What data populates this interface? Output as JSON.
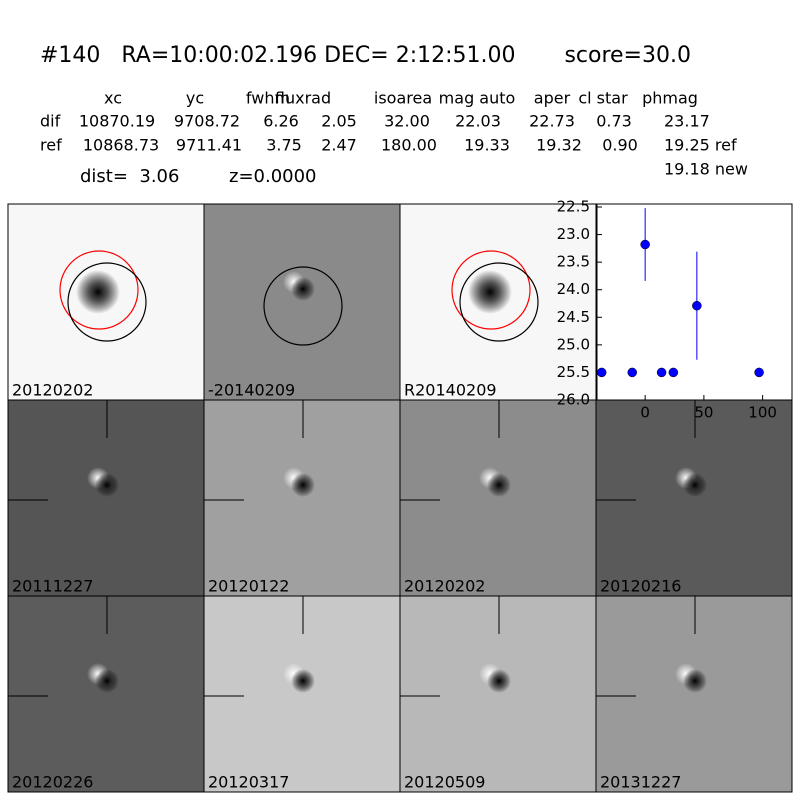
{
  "header": {
    "title": "#140   RA=10:00:02.196 DEC= 2:12:51.00       score=30.0"
  },
  "table": {
    "columns": [
      "xc",
      "yc",
      "fwhm",
      "fluxrad",
      "isoarea",
      "mag auto",
      "aper",
      "cl star",
      "phmag"
    ],
    "rows": [
      [
        "dif",
        "10870.19",
        "9708.72",
        "6.26",
        "2.05",
        "32.00",
        "22.03",
        "22.73",
        "0.73",
        "23.17"
      ],
      [
        "ref",
        "10868.73",
        "9711.41",
        "3.75",
        "2.47",
        "180.00",
        "19.33",
        "19.32",
        "0.90",
        "19.25 ref"
      ]
    ]
  },
  "dist": "dist=  3.06",
  "z": "z=0.0000",
  "new_mag": "19.18 new",
  "stamps": [
    {
      "label": "20120202",
      "color": "#000000"
    },
    {
      "label": "-20140209",
      "color": "#000000"
    },
    {
      "label": "R20140209",
      "color": "#000000"
    },
    {
      "label": "20111227",
      "color": "#000000"
    },
    {
      "label": "20120122",
      "color": "#000000"
    },
    {
      "label": "20120202",
      "color": "#ff0000"
    },
    {
      "label": "20120216",
      "color": "#000000"
    },
    {
      "label": "20120226",
      "color": "#000000"
    },
    {
      "label": "20120317",
      "color": "#000000"
    },
    {
      "label": "20120509",
      "color": "#000000"
    },
    {
      "label": "20131227",
      "color": "#000000"
    }
  ],
  "chart_data": {
    "type": "scatter",
    "series": [
      {
        "color": "#0000ff",
        "x": [
          -37,
          -11,
          0,
          14,
          24,
          44,
          97
        ],
        "values": [
          25.5,
          25.5,
          23.18,
          25.5,
          25.5,
          24.29,
          25.5
        ],
        "errors": [
          null,
          null,
          0.66,
          null,
          null,
          0.98,
          null
        ]
      }
    ],
    "xlim": [
      -41,
      125
    ],
    "ylim": [
      26.0,
      22.5
    ],
    "xticks": [
      0,
      50,
      100
    ],
    "yticks": [
      {
        "value": 22.5,
        "label": "22.5"
      },
      {
        "value": 23,
        "label": "23.0"
      },
      {
        "value": 23.5,
        "label": "23.5"
      },
      {
        "value": 24,
        "label": "24.0"
      },
      {
        "value": 24.5,
        "label": "24.5"
      },
      {
        "value": 25,
        "label": "25.0"
      },
      {
        "value": 25.5,
        "label": "25.5"
      },
      {
        "value": 26,
        "label": "26.0"
      }
    ]
  }
}
